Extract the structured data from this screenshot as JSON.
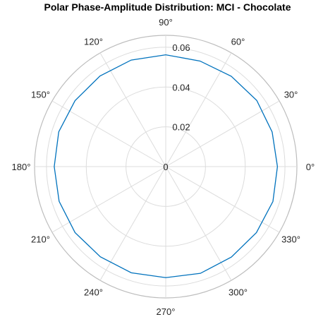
{
  "chart_data": {
    "type": "line",
    "coordinate_system": "polar",
    "title": "Polar Phase-Amplitude Distribution: MCI - Chocolate",
    "theta_unit": "degrees",
    "theta_ticks": [
      0,
      30,
      60,
      90,
      120,
      150,
      180,
      210,
      240,
      270,
      300,
      330
    ],
    "theta_tick_labels": [
      "0°",
      "30°",
      "60°",
      "90°",
      "120°",
      "150°",
      "180°",
      "210°",
      "240°",
      "270°",
      "300°",
      "330°"
    ],
    "r_ticks": [
      0,
      0.02,
      0.04,
      0.06
    ],
    "r_tick_labels": [
      "0",
      "0.02",
      "0.04",
      "0.06"
    ],
    "rlim": [
      0,
      0.066
    ],
    "grid": true,
    "line_color": "#0072BD",
    "series": [
      {
        "theta": [
          0,
          18,
          36,
          54,
          72,
          90,
          108,
          126,
          144,
          162,
          180,
          198,
          216,
          234,
          252,
          270,
          288,
          306,
          324,
          342,
          360
        ],
        "r": [
          0.0562,
          0.0563,
          0.0566,
          0.0561,
          0.0558,
          0.0562,
          0.0563,
          0.0563,
          0.0564,
          0.0566,
          0.0561,
          0.0564,
          0.0564,
          0.056,
          0.0561,
          0.0558,
          0.0564,
          0.0562,
          0.0564,
          0.0567,
          0.0562
        ]
      }
    ]
  }
}
